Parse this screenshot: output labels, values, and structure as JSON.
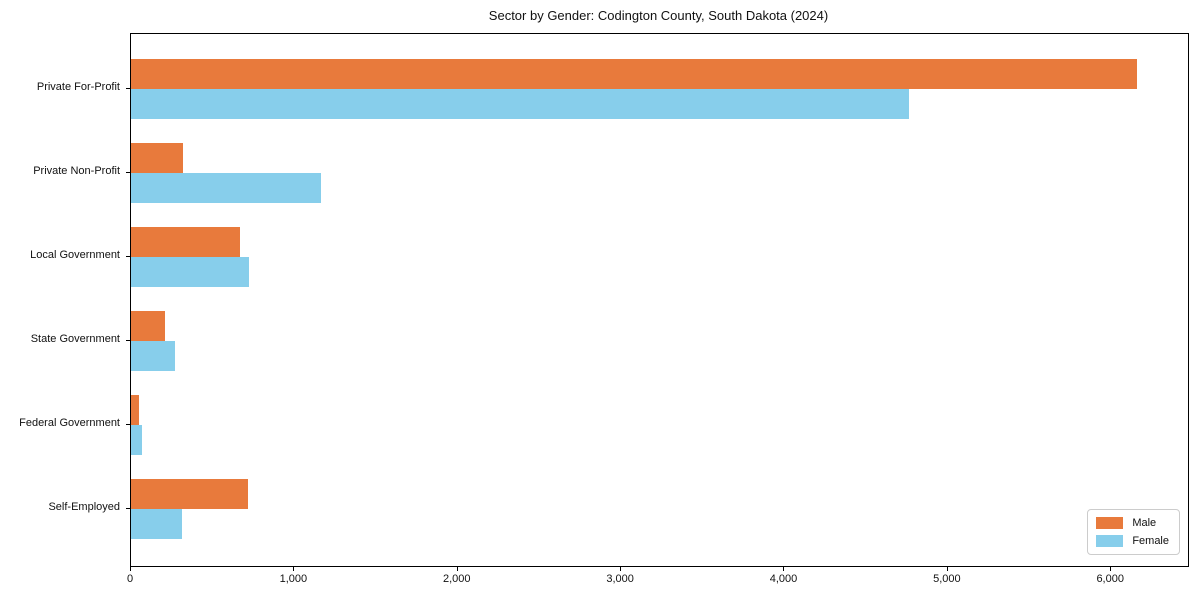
{
  "chart_data": {
    "type": "bar",
    "orientation": "horizontal",
    "title": "Sector by Gender: Codington County, South Dakota (2024)",
    "categories": [
      "Private For-Profit",
      "Private Non-Profit",
      "Local Government",
      "State Government",
      "Federal Government",
      "Self-Employed"
    ],
    "series": [
      {
        "name": "Male",
        "color": "#e87a3c",
        "values": [
          6160,
          320,
          670,
          210,
          50,
          715
        ]
      },
      {
        "name": "Female",
        "color": "#87ceeb",
        "values": [
          4760,
          1160,
          720,
          270,
          65,
          310
        ]
      }
    ],
    "xlabel": "",
    "ylabel": "",
    "xlim": [
      0,
      6470
    ],
    "xticks": [
      0,
      1000,
      2000,
      3000,
      4000,
      5000,
      6000
    ],
    "xtick_labels": [
      "0",
      "1,000",
      "2,000",
      "3,000",
      "4,000",
      "5,000",
      "6,000"
    ],
    "grid": false,
    "legend": {
      "position": "lower right",
      "entries": [
        "Male",
        "Female"
      ]
    },
    "colors": {
      "axis": "#000000",
      "text": "#111111",
      "background": "#ffffff"
    }
  }
}
